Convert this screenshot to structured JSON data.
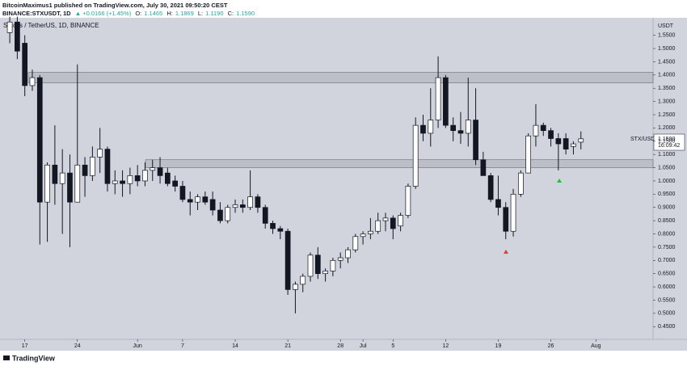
{
  "header": {
    "author_line": "BitcoinMaximus1 published on TradingView.com, July 30, 2021 09:50:20 CEST",
    "symbol": "BINANCE:STXUSDT, 1D",
    "change": "▲ +0.0166 (+1.45%)",
    "ohlc": [
      {
        "label": "O:",
        "value": "1.1465"
      },
      {
        "label": "H:",
        "value": "1.1869"
      },
      {
        "label": "L:",
        "value": "1.1190"
      },
      {
        "label": "C:",
        "value": "1.1590"
      }
    ]
  },
  "footer": {
    "brand": "TradingView"
  },
  "chart_data": {
    "type": "candlestick",
    "watermark": "Stacks / TetherUS, 1D, BINANCE",
    "currency": "USDT",
    "symbol_label": "STX/USDT",
    "last_label": "1.1590",
    "countdown": "16:09:42",
    "up_color": "#ffffff",
    "down_color": "#131722",
    "border_color": "#131722",
    "background": "#d1d4dc",
    "grid": false,
    "open": [
      1.56,
      1.6,
      1.52,
      1.36,
      1.39,
      0.92,
      1.06,
      0.99,
      1.03,
      0.92,
      1.06,
      1.02,
      1.09,
      1.12,
      0.99,
      1.0,
      0.99,
      1.02,
      1.0,
      1.04,
      1.05,
      1.03,
      1.0,
      0.98,
      0.93,
      0.92,
      0.94,
      0.93,
      0.89,
      0.85,
      0.9,
      0.91,
      0.9,
      0.94,
      0.9,
      0.84,
      0.82,
      0.81,
      0.59,
      0.61,
      0.64,
      0.72,
      0.65,
      0.66,
      0.7,
      0.71,
      0.74,
      0.79,
      0.8,
      0.81,
      0.85,
      0.86,
      0.83,
      0.87,
      0.98,
      1.21,
      1.18,
      1.23,
      1.39,
      1.21,
      1.19,
      1.18,
      1.23,
      1.08,
      1.02,
      0.93,
      0.9,
      0.81,
      0.95,
      1.03,
      1.17,
      1.21,
      1.19,
      1.16,
      1.16,
      1.13,
      1.1465
    ],
    "high": [
      1.62,
      1.62,
      1.55,
      1.42,
      1.4,
      1.07,
      1.21,
      1.12,
      1.1,
      1.44,
      1.09,
      1.13,
      1.2,
      1.13,
      1.04,
      1.04,
      1.05,
      1.06,
      1.07,
      1.08,
      1.09,
      1.05,
      1.02,
      1.0,
      0.96,
      0.95,
      0.96,
      0.96,
      0.92,
      0.91,
      0.93,
      0.93,
      1.04,
      0.95,
      0.91,
      0.85,
      0.83,
      0.82,
      0.62,
      0.65,
      0.73,
      0.75,
      0.67,
      0.71,
      0.73,
      0.75,
      0.8,
      0.81,
      0.86,
      0.88,
      0.88,
      0.87,
      0.88,
      0.99,
      1.24,
      1.25,
      1.35,
      1.47,
      1.4,
      1.24,
      1.26,
      1.39,
      1.35,
      1.11,
      1.03,
      1.02,
      0.92,
      0.97,
      1.04,
      1.18,
      1.29,
      1.22,
      1.2,
      1.18,
      1.18,
      1.15,
      1.1869
    ],
    "low": [
      1.52,
      1.46,
      1.32,
      1.34,
      0.76,
      0.77,
      0.91,
      0.8,
      0.75,
      0.92,
      0.94,
      1.0,
      1.03,
      0.96,
      0.95,
      0.94,
      0.95,
      0.98,
      0.98,
      1.0,
      0.99,
      0.98,
      0.96,
      0.92,
      0.87,
      0.89,
      0.91,
      0.87,
      0.84,
      0.84,
      0.88,
      0.88,
      0.89,
      0.88,
      0.82,
      0.8,
      0.78,
      0.57,
      0.5,
      0.58,
      0.62,
      0.63,
      0.62,
      0.64,
      0.67,
      0.69,
      0.73,
      0.76,
      0.78,
      0.8,
      0.81,
      0.78,
      0.81,
      0.86,
      0.97,
      1.15,
      1.13,
      1.2,
      1.2,
      1.15,
      1.14,
      1.13,
      1.06,
      1.02,
      0.92,
      0.87,
      0.78,
      0.79,
      0.94,
      1.03,
      1.13,
      1.17,
      1.13,
      1.04,
      1.1,
      1.1,
      1.119
    ],
    "close": [
      1.6,
      1.49,
      1.36,
      1.39,
      0.92,
      1.06,
      0.99,
      1.03,
      0.92,
      1.06,
      1.02,
      1.09,
      1.12,
      0.99,
      1.0,
      0.99,
      1.02,
      1.0,
      1.04,
      1.05,
      1.02,
      0.99,
      0.98,
      0.93,
      0.92,
      0.94,
      0.92,
      0.89,
      0.85,
      0.9,
      0.91,
      0.9,
      0.94,
      0.9,
      0.84,
      0.82,
      0.81,
      0.59,
      0.61,
      0.64,
      0.72,
      0.65,
      0.66,
      0.7,
      0.71,
      0.74,
      0.79,
      0.8,
      0.81,
      0.85,
      0.86,
      0.82,
      0.87,
      0.98,
      1.21,
      1.18,
      1.23,
      1.39,
      1.21,
      1.19,
      1.18,
      1.23,
      1.08,
      1.02,
      0.93,
      0.9,
      0.81,
      0.95,
      1.03,
      1.17,
      1.21,
      1.19,
      1.16,
      1.14,
      1.12,
      1.14,
      1.159
    ],
    "zones": [
      [
        1.37,
        1.41
      ],
      [
        1.05,
        1.08
      ]
    ],
    "xlim": [
      -1.3,
      85.6
    ],
    "xticks": [
      {
        "value": 2,
        "label": "17"
      },
      {
        "value": 9,
        "label": "24"
      },
      {
        "value": 17,
        "label": "Jun"
      },
      {
        "value": 23,
        "label": "7"
      },
      {
        "value": 30,
        "label": "14"
      },
      {
        "value": 37,
        "label": "21"
      },
      {
        "value": 44,
        "label": "28"
      },
      {
        "value": 47,
        "label": "Jul"
      },
      {
        "value": 51,
        "label": "5"
      },
      {
        "value": 58,
        "label": "12"
      },
      {
        "value": 65,
        "label": "19"
      },
      {
        "value": 72,
        "label": "26"
      },
      {
        "value": 78,
        "label": "Aug"
      }
    ],
    "ylim": [
      0.402,
      1.616
    ],
    "yticks": [
      {
        "value": 0.45,
        "label": "0.4500"
      },
      {
        "value": 0.5,
        "label": "0.5000"
      },
      {
        "value": 0.55,
        "label": "0.5500"
      },
      {
        "value": 0.6,
        "label": "0.6000"
      },
      {
        "value": 0.65,
        "label": "0.6500"
      },
      {
        "value": 0.7,
        "label": "0.7000"
      },
      {
        "value": 0.75,
        "label": "0.7500"
      },
      {
        "value": 0.8,
        "label": "0.8000"
      },
      {
        "value": 0.85,
        "label": "0.8500"
      },
      {
        "value": 0.9,
        "label": "0.9000"
      },
      {
        "value": 0.95,
        "label": "0.9500"
      },
      {
        "value": 1.0,
        "label": "1.0000"
      },
      {
        "value": 1.05,
        "label": "1.0500"
      },
      {
        "value": 1.1,
        "label": "1.1000"
      },
      {
        "value": 1.15,
        "label": "1.1500"
      },
      {
        "value": 1.2,
        "label": "1.2000"
      },
      {
        "value": 1.25,
        "label": "1.2500"
      },
      {
        "value": 1.3,
        "label": "1.3000"
      },
      {
        "value": 1.35,
        "label": "1.3500"
      },
      {
        "value": 1.4,
        "label": "1.4000"
      },
      {
        "value": 1.45,
        "label": "1.4500"
      },
      {
        "value": 1.5,
        "label": "1.5000"
      },
      {
        "value": 1.55,
        "label": "1.5500"
      }
    ]
  }
}
